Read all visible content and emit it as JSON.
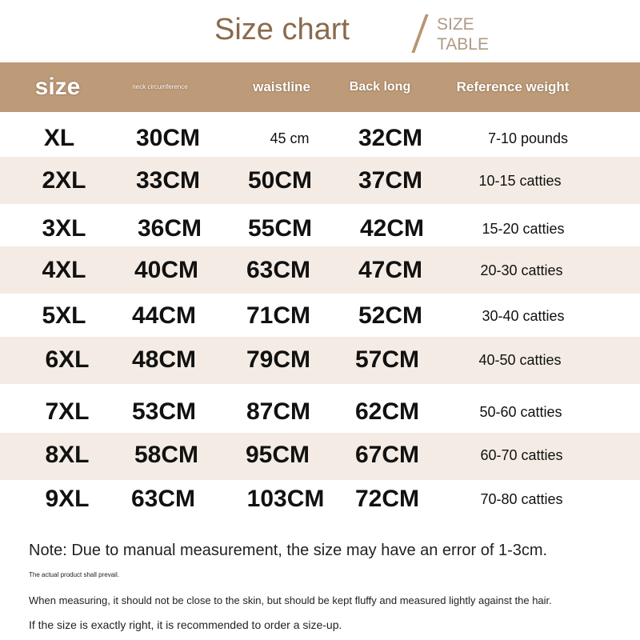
{
  "title": "Size chart",
  "subtitle_line1": "SIZE",
  "subtitle_line2": "TABLE",
  "colors": {
    "header": "#bd9a78",
    "stripe": "#f4ece4",
    "title": "#8a6a4c"
  },
  "headers": [
    "size",
    "neck circumference",
    "waistline",
    "Back long",
    "Reference weight"
  ],
  "rows": [
    [
      "XL",
      "30CM",
      "45 cm",
      "32CM",
      "7-10 pounds"
    ],
    [
      "2XL",
      "33CM",
      "50CM",
      "37CM",
      "10-15 catties"
    ],
    [
      "3XL",
      "36CM",
      "55CM",
      "42CM",
      "15-20 catties"
    ],
    [
      "4XL",
      "40CM",
      "63CM",
      "47CM",
      "20-30 catties"
    ],
    [
      "5XL",
      "44CM",
      "71CM",
      "52CM",
      "30-40 catties"
    ],
    [
      "6XL",
      "48CM",
      "79CM",
      "57CM",
      "40-50 catties"
    ],
    [
      "7XL",
      "53CM",
      "87CM",
      "62CM",
      "50-60 catties"
    ],
    [
      "8XL",
      "58CM",
      "95CM",
      "67CM",
      "60-70 catties"
    ],
    [
      "9XL",
      "63CM",
      "103CM",
      "72CM",
      "70-80 catties"
    ]
  ],
  "notes": [
    "Note: Due to manual measurement, the size may have an error of 1-3cm.",
    "The actual product shall prevail.",
    "When measuring, it should not be close to the skin, but should be kept fluffy and measured lightly against the hair.",
    "If the size is exactly right, it is recommended to order a size-up."
  ]
}
